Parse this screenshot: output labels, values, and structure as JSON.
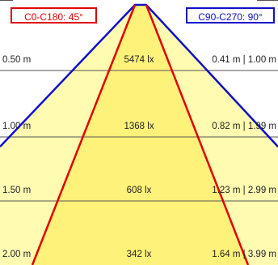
{
  "legend": {
    "c0_c180": "C0-C180: 45°",
    "c90_c270": "C90-C270: 90°"
  },
  "colors": {
    "c0_c180_line": "#e00000",
    "c90_c270_line": "#1010c8",
    "light_cone_fill": "#fffbb0",
    "inner_cone_fill": "#fff27a",
    "grid_line": "#555555"
  },
  "rows": [
    {
      "distance": "0.50 m",
      "illuminance": "5474 lx",
      "diameters": "0.41 m | 1.00 m"
    },
    {
      "distance": "1.00 m",
      "illuminance": "1368 lx",
      "diameters": "0.82 m | 1.99 m"
    },
    {
      "distance": "1.50 m",
      "illuminance": "608 lx",
      "diameters": "1.23 m | 2.99 m"
    },
    {
      "distance": "2.00 m",
      "illuminance": "342 lx",
      "diameters": "1.64 m | 3.99 m"
    }
  ]
}
